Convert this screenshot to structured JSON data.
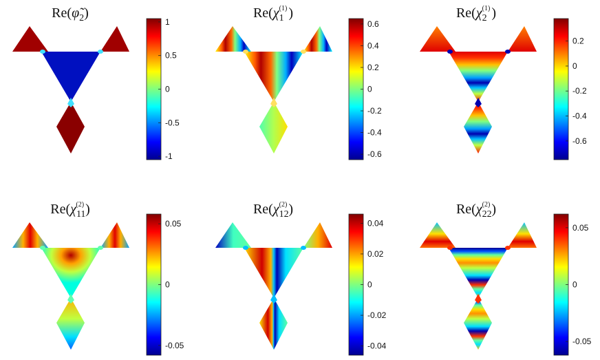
{
  "figure": {
    "panels": [
      {
        "title": {
          "pre": "Re(",
          "sym": "φ̃",
          "sub": "2",
          "sup": "",
          "post": ")"
        },
        "colorbar": {
          "ticks": [
            "1",
            "0.5",
            "0",
            "-0.5",
            "-1"
          ],
          "range": [
            -1.05,
            1.05
          ]
        }
      },
      {
        "title": {
          "pre": "Re(",
          "sym": "χ",
          "sub": "1",
          "sup": "(1)",
          "post": ")"
        },
        "colorbar": {
          "ticks": [
            "0.6",
            "0.4",
            "0.2",
            "0",
            "-0.2",
            "-0.4",
            "-0.6"
          ],
          "range": [
            -0.65,
            0.65
          ]
        }
      },
      {
        "title": {
          "pre": "Re(",
          "sym": "χ",
          "sub": "2",
          "sup": "(1)",
          "post": ")"
        },
        "colorbar": {
          "ticks": [
            "0.2",
            "0",
            "-0.2",
            "-0.4",
            "-0.6"
          ],
          "range": [
            -0.75,
            0.38
          ]
        }
      },
      {
        "title": {
          "pre": "Re(",
          "sym": "χ",
          "sub": "11",
          "sup": "(2)",
          "post": ")"
        },
        "colorbar": {
          "ticks": [
            "0.05",
            "0",
            "-0.05"
          ],
          "range": [
            -0.058,
            0.058
          ]
        }
      },
      {
        "title": {
          "pre": "Re(",
          "sym": "χ",
          "sub": "12",
          "sup": "(2)",
          "post": ")"
        },
        "colorbar": {
          "ticks": [
            "0.04",
            "0.02",
            "0",
            "-0.02",
            "-0.04"
          ],
          "range": [
            -0.046,
            0.046
          ]
        }
      },
      {
        "title": {
          "pre": "Re(",
          "sym": "χ",
          "sub": "22",
          "sup": "(2)",
          "post": ")"
        },
        "colorbar": {
          "ticks": [
            "0.05",
            "0",
            "-0.05"
          ],
          "range": [
            -0.062,
            0.062
          ]
        }
      }
    ],
    "colormap": "jet"
  }
}
